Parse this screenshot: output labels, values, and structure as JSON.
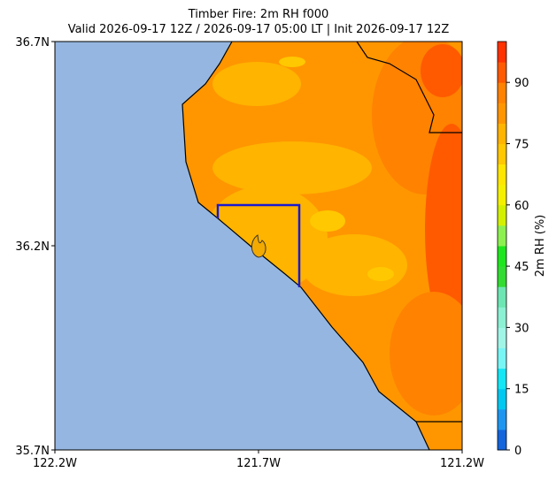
{
  "title": "Timber Fire: 2m RH f000",
  "subtitle": "Valid 2026-09-17 12Z / 2026-09-17 05:00 LT | Init 2026-09-17 12Z",
  "map": {
    "xticks": [
      "122.2W",
      "121.7W",
      "121.2W"
    ],
    "yticks": [
      "36.7N",
      "36.2N",
      "35.7N"
    ]
  },
  "colorbar": {
    "label": "2m RH (%)",
    "lim": [
      0,
      100
    ],
    "ticks": [
      0,
      15,
      30,
      45,
      60,
      75,
      90
    ],
    "colors": [
      "#1464dc",
      "#1e96f0",
      "#00c8f0",
      "#14e6f5",
      "#78f5f5",
      "#a0f5e6",
      "#8cf0d2",
      "#6ee6b4",
      "#32dc32",
      "#1ee61e",
      "#8cf050",
      "#d2f000",
      "#f5f000",
      "#ffe600",
      "#ffc800",
      "#ffb400",
      "#ff9600",
      "#ff8200",
      "#ff5a00",
      "#ff3200"
    ]
  }
}
